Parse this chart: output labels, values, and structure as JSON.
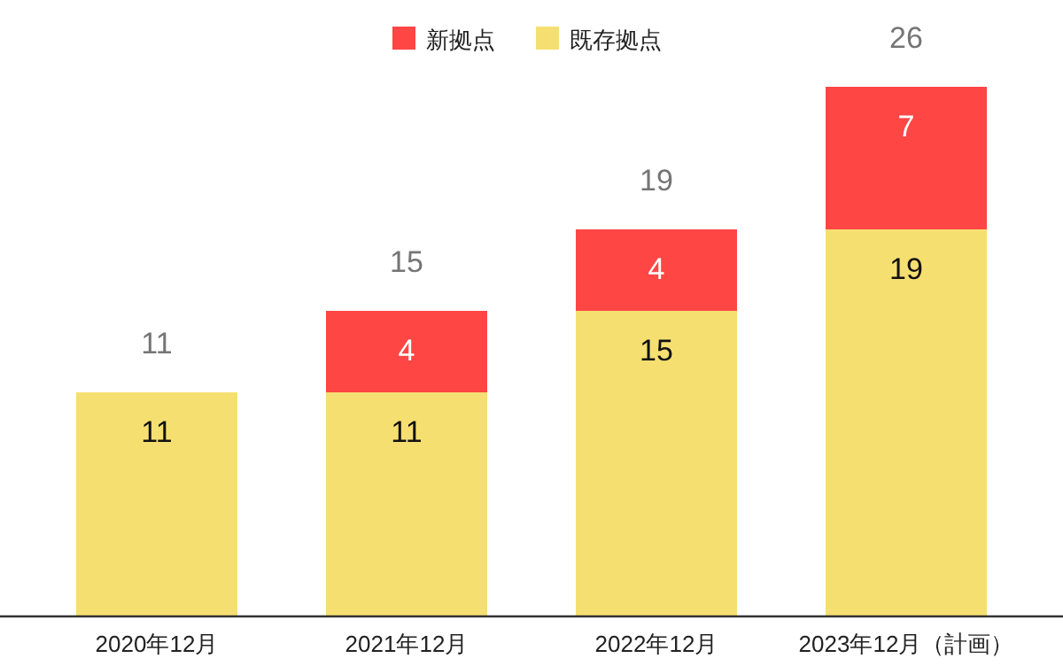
{
  "chart_data": {
    "type": "bar",
    "stacked": true,
    "legend": "top",
    "data_labels": true,
    "categories": [
      "2020年12月",
      "2021年12月",
      "2022年12月",
      "2023年12月（計画）"
    ],
    "series": [
      {
        "name": "既存拠点",
        "color": "#f6df71",
        "values": [
          11,
          11,
          15,
          19
        ]
      },
      {
        "name": "新拠点",
        "color": "#fe4645",
        "values": [
          null,
          4,
          4,
          7
        ]
      }
    ],
    "totals": [
      "11",
      "15",
      "19",
      "26"
    ]
  }
}
